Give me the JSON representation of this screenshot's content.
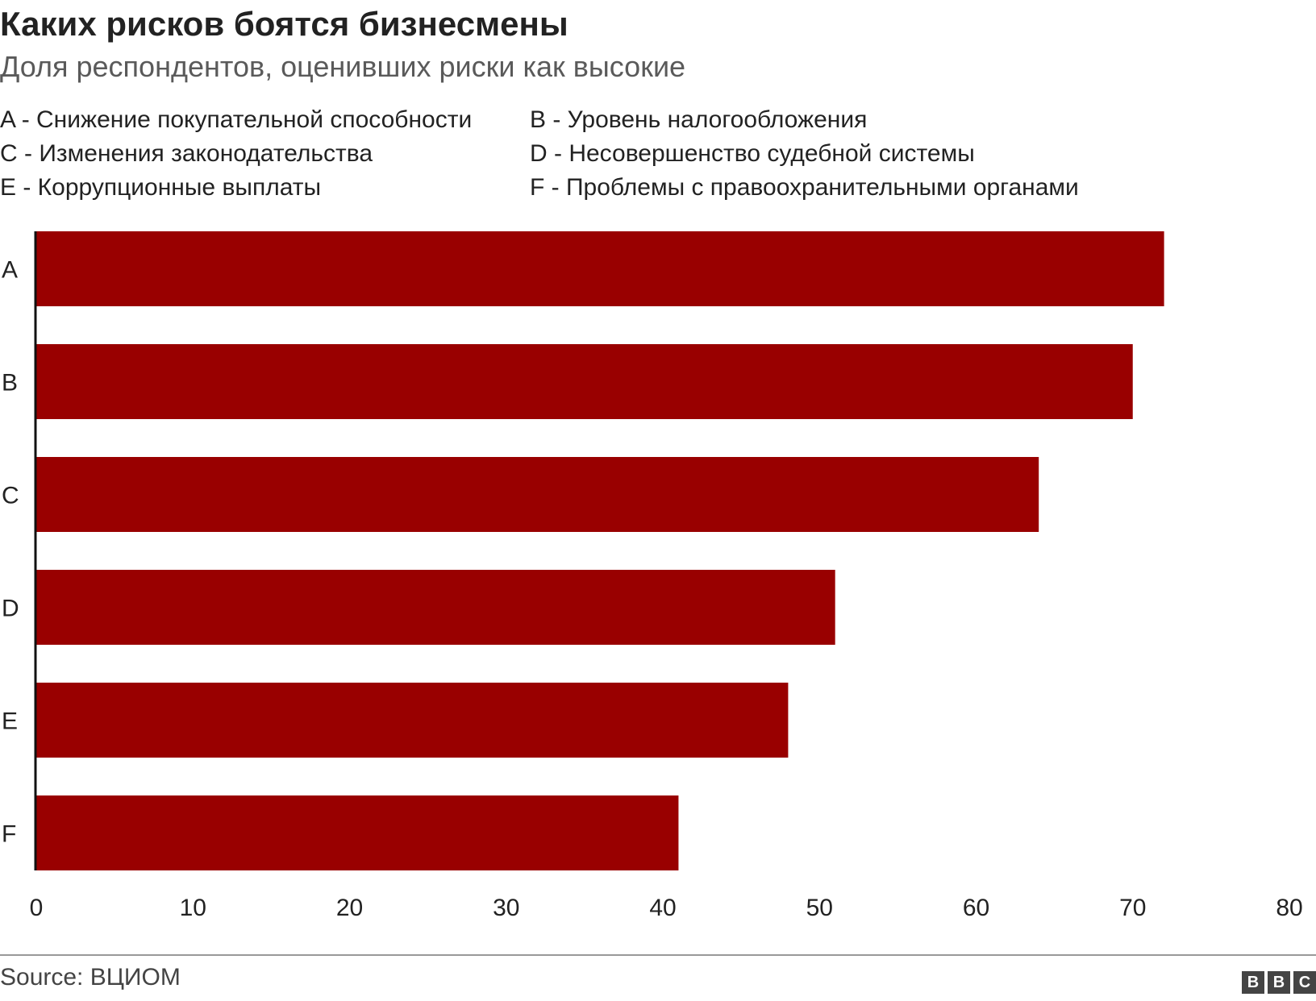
{
  "header": {
    "title": "Каких рисков боятся бизнесмены",
    "subtitle": "Доля респондентов, оценивших риски как высокие"
  },
  "legend": {
    "items": [
      "A - Снижение покупательной способности",
      "B - Уровень налогообложения",
      "C - Изменения законодательства",
      "D - Несовершенство судебной системы",
      "E - Коррупционные выплаты",
      "F - Проблемы с правоохранительными органами"
    ]
  },
  "chart_data": {
    "type": "bar",
    "orientation": "horizontal",
    "title": "Каких рисков боятся бизнесмены",
    "subtitle": "Доля респондентов, оценивших риски как высокие",
    "categories": [
      "A",
      "B",
      "C",
      "D",
      "E",
      "F"
    ],
    "values": [
      72,
      70,
      64,
      51,
      48,
      41
    ],
    "xlim": [
      0,
      80
    ],
    "xticks": [
      "0",
      "10",
      "20",
      "30",
      "40",
      "50",
      "60",
      "70",
      "80"
    ],
    "xlabel": "",
    "ylabel": "",
    "grid": false,
    "bar_color": "#990000"
  },
  "footer": {
    "source": "Source: ВЦИОМ",
    "logo_letters": [
      "B",
      "B",
      "C"
    ]
  }
}
